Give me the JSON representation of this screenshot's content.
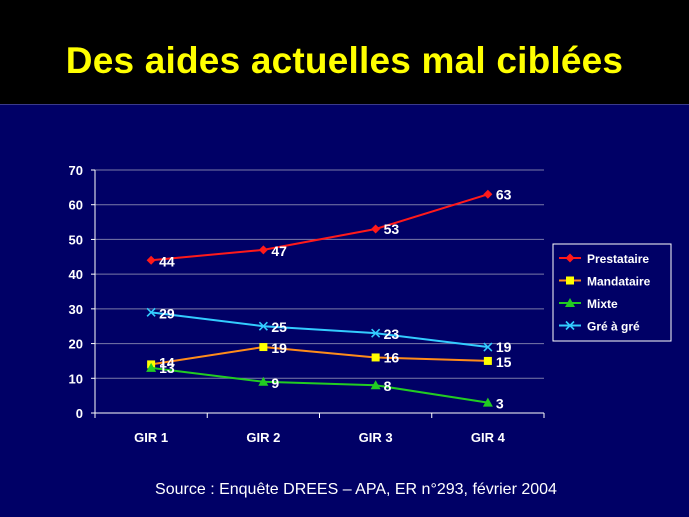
{
  "slide": {
    "title": "Des aides actuelles mal ciblées",
    "source": "Source : Enquête DREES – APA, ER n°293, février 2004"
  },
  "colors": {
    "background": "#000066",
    "title": "#ffff00",
    "text": "#ffffff"
  },
  "chart_data": {
    "type": "line",
    "title": "",
    "xlabel": "",
    "ylabel": "",
    "categories": [
      "GIR 1",
      "GIR 2",
      "GIR 3",
      "GIR 4"
    ],
    "ylim": [
      0,
      70
    ],
    "yticks": [
      0,
      10,
      20,
      30,
      40,
      50,
      60,
      70
    ],
    "grid": "horizontal",
    "legend_position": "right",
    "series": [
      {
        "name": "Prestataire",
        "values": [
          44,
          47,
          53,
          63
        ],
        "color": "#ff1a1a",
        "marker": "diamond"
      },
      {
        "name": "Mandataire",
        "values": [
          14,
          19,
          16,
          15
        ],
        "color": "#ff8c1a",
        "marker": "square",
        "marker_color": "#ffff00"
      },
      {
        "name": "Mixte",
        "values": [
          13,
          9,
          8,
          3
        ],
        "color": "#22cc22",
        "marker": "triangle"
      },
      {
        "name": "Gré à gré",
        "values": [
          29,
          25,
          23,
          19
        ],
        "color": "#33ccff",
        "marker": "x"
      }
    ]
  }
}
